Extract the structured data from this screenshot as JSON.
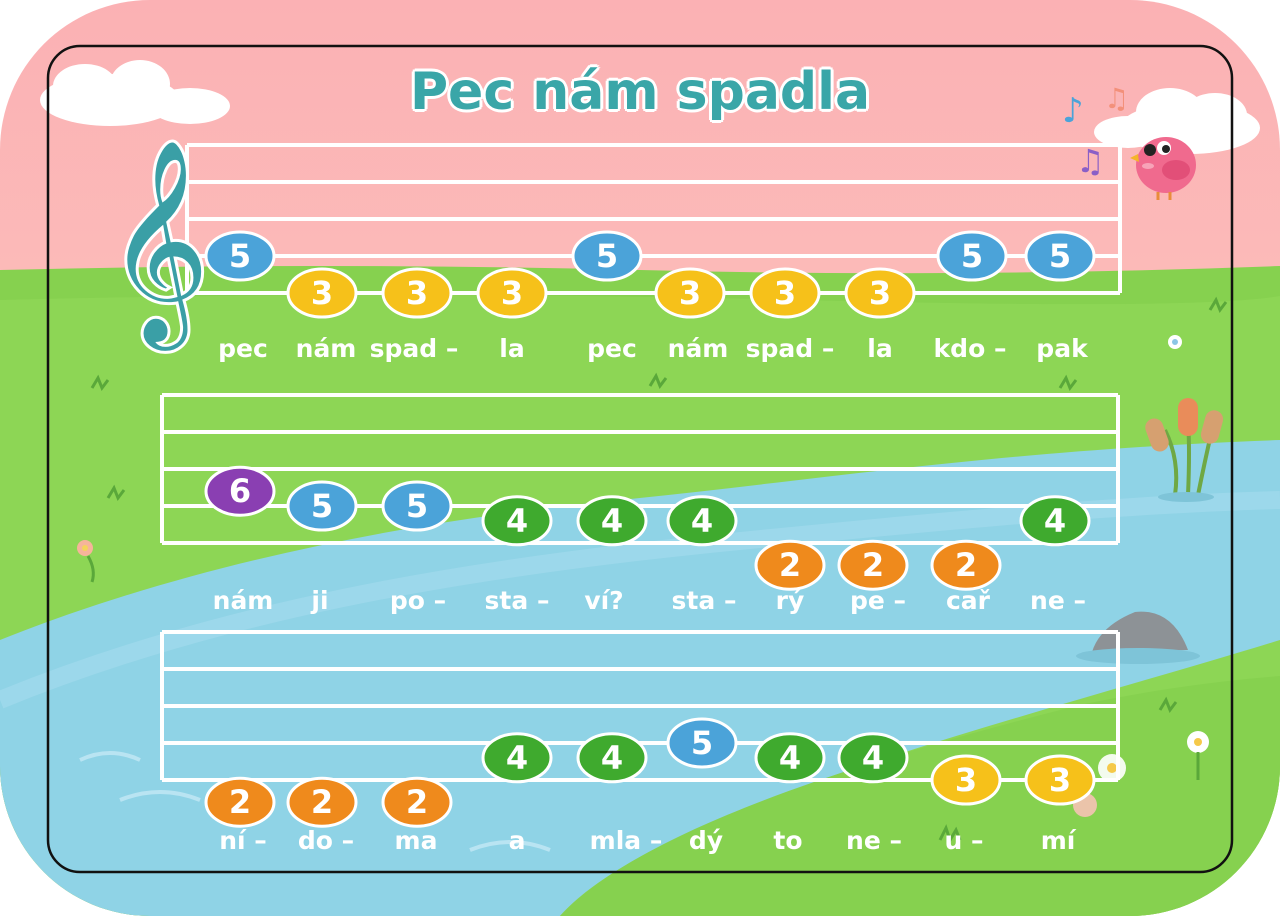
{
  "title": "Pec nám spadla",
  "colors": {
    "degree_2": "#ef8a1c",
    "degree_3": "#f6c11a",
    "degree_4": "#3faa2e",
    "degree_5": "#4ba3d9",
    "degree_6": "#8a3fb2",
    "title": "#3aa6a8",
    "clef": "#3a9fa6"
  },
  "lines": [
    {
      "notes": [
        "5",
        "3",
        "3",
        "3",
        "5",
        "3",
        "3",
        "3",
        "5",
        "5"
      ],
      "lyrics": [
        "pec",
        "nám",
        "spad –",
        "la",
        "pec",
        "nám",
        "spad –",
        "la",
        "kdo –",
        "pak"
      ]
    },
    {
      "notes": [
        "6",
        "5",
        "5",
        "4",
        "4",
        "4",
        "2",
        "2",
        "2",
        "4"
      ],
      "lyrics": [
        "nám",
        "ji",
        "po –",
        "sta –",
        "ví?",
        "sta –",
        "rý",
        "pe –",
        "cař",
        "ne –"
      ]
    },
    {
      "notes": [
        "2",
        "2",
        "2",
        "4",
        "4",
        "5",
        "4",
        "4",
        "3",
        "3"
      ],
      "lyrics": [
        "ní –",
        "do –",
        "ma",
        "a",
        "mla –",
        "dý",
        "to",
        "ne –",
        "u –",
        "mí"
      ]
    }
  ],
  "icons": [
    "treble-clef-icon",
    "pink-bird-icon",
    "music-note-icon",
    "cloud-icon",
    "cattail-icon",
    "flower-icon",
    "rock-icon"
  ]
}
